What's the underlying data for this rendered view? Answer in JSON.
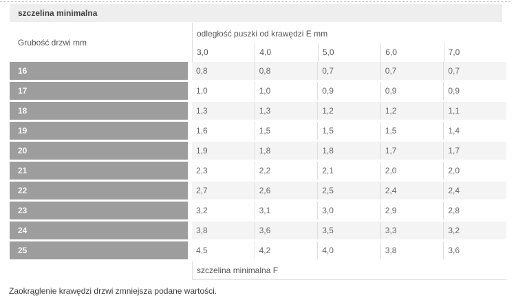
{
  "chart_data": {
    "type": "table",
    "title": "szczelina minimalna",
    "row_header": "Grubość drzwi mm",
    "column_group_header": "odległość puszki od krawędzi E mm",
    "columns": [
      "3,0",
      "4,0",
      "5,0",
      "6,0",
      "7,0"
    ],
    "rows": [
      {
        "label": "16",
        "values": [
          "0,8",
          "0,8",
          "0,7",
          "0,7",
          "0,7"
        ]
      },
      {
        "label": "17",
        "values": [
          "1,0",
          "1,0",
          "0,9",
          "0,9",
          "0,9"
        ]
      },
      {
        "label": "18",
        "values": [
          "1,3",
          "1,3",
          "1,2",
          "1,2",
          "1,1"
        ]
      },
      {
        "label": "19",
        "values": [
          "1,6",
          "1,5",
          "1,5",
          "1,5",
          "1,4"
        ]
      },
      {
        "label": "20",
        "values": [
          "1,9",
          "1,8",
          "1,8",
          "1,7",
          "1,7"
        ]
      },
      {
        "label": "21",
        "values": [
          "2,3",
          "2,2",
          "2,1",
          "2,0",
          "2,0"
        ]
      },
      {
        "label": "22",
        "values": [
          "2,7",
          "2,6",
          "2,5",
          "2,4",
          "2,4"
        ]
      },
      {
        "label": "23",
        "values": [
          "3,2",
          "3,1",
          "3,0",
          "2,9",
          "2,8"
        ]
      },
      {
        "label": "24",
        "values": [
          "3,8",
          "3,6",
          "3,5",
          "3,3",
          "3,2"
        ]
      },
      {
        "label": "25",
        "values": [
          "4,5",
          "4,2",
          "4,0",
          "3,8",
          "3,6"
        ]
      }
    ],
    "footer": "szczelina minimalna F",
    "note": "Zaokrąglenie krawędzi drzwi zmniejsza podane wartości."
  },
  "colors": {
    "title_bar_bg": "#eeeeee",
    "row_label_bg": "#9d9d9d",
    "row_stripe_bg": "#f4f4f4",
    "divider": "#dddddd",
    "value_text": "#666666",
    "label_text": "#555555"
  }
}
